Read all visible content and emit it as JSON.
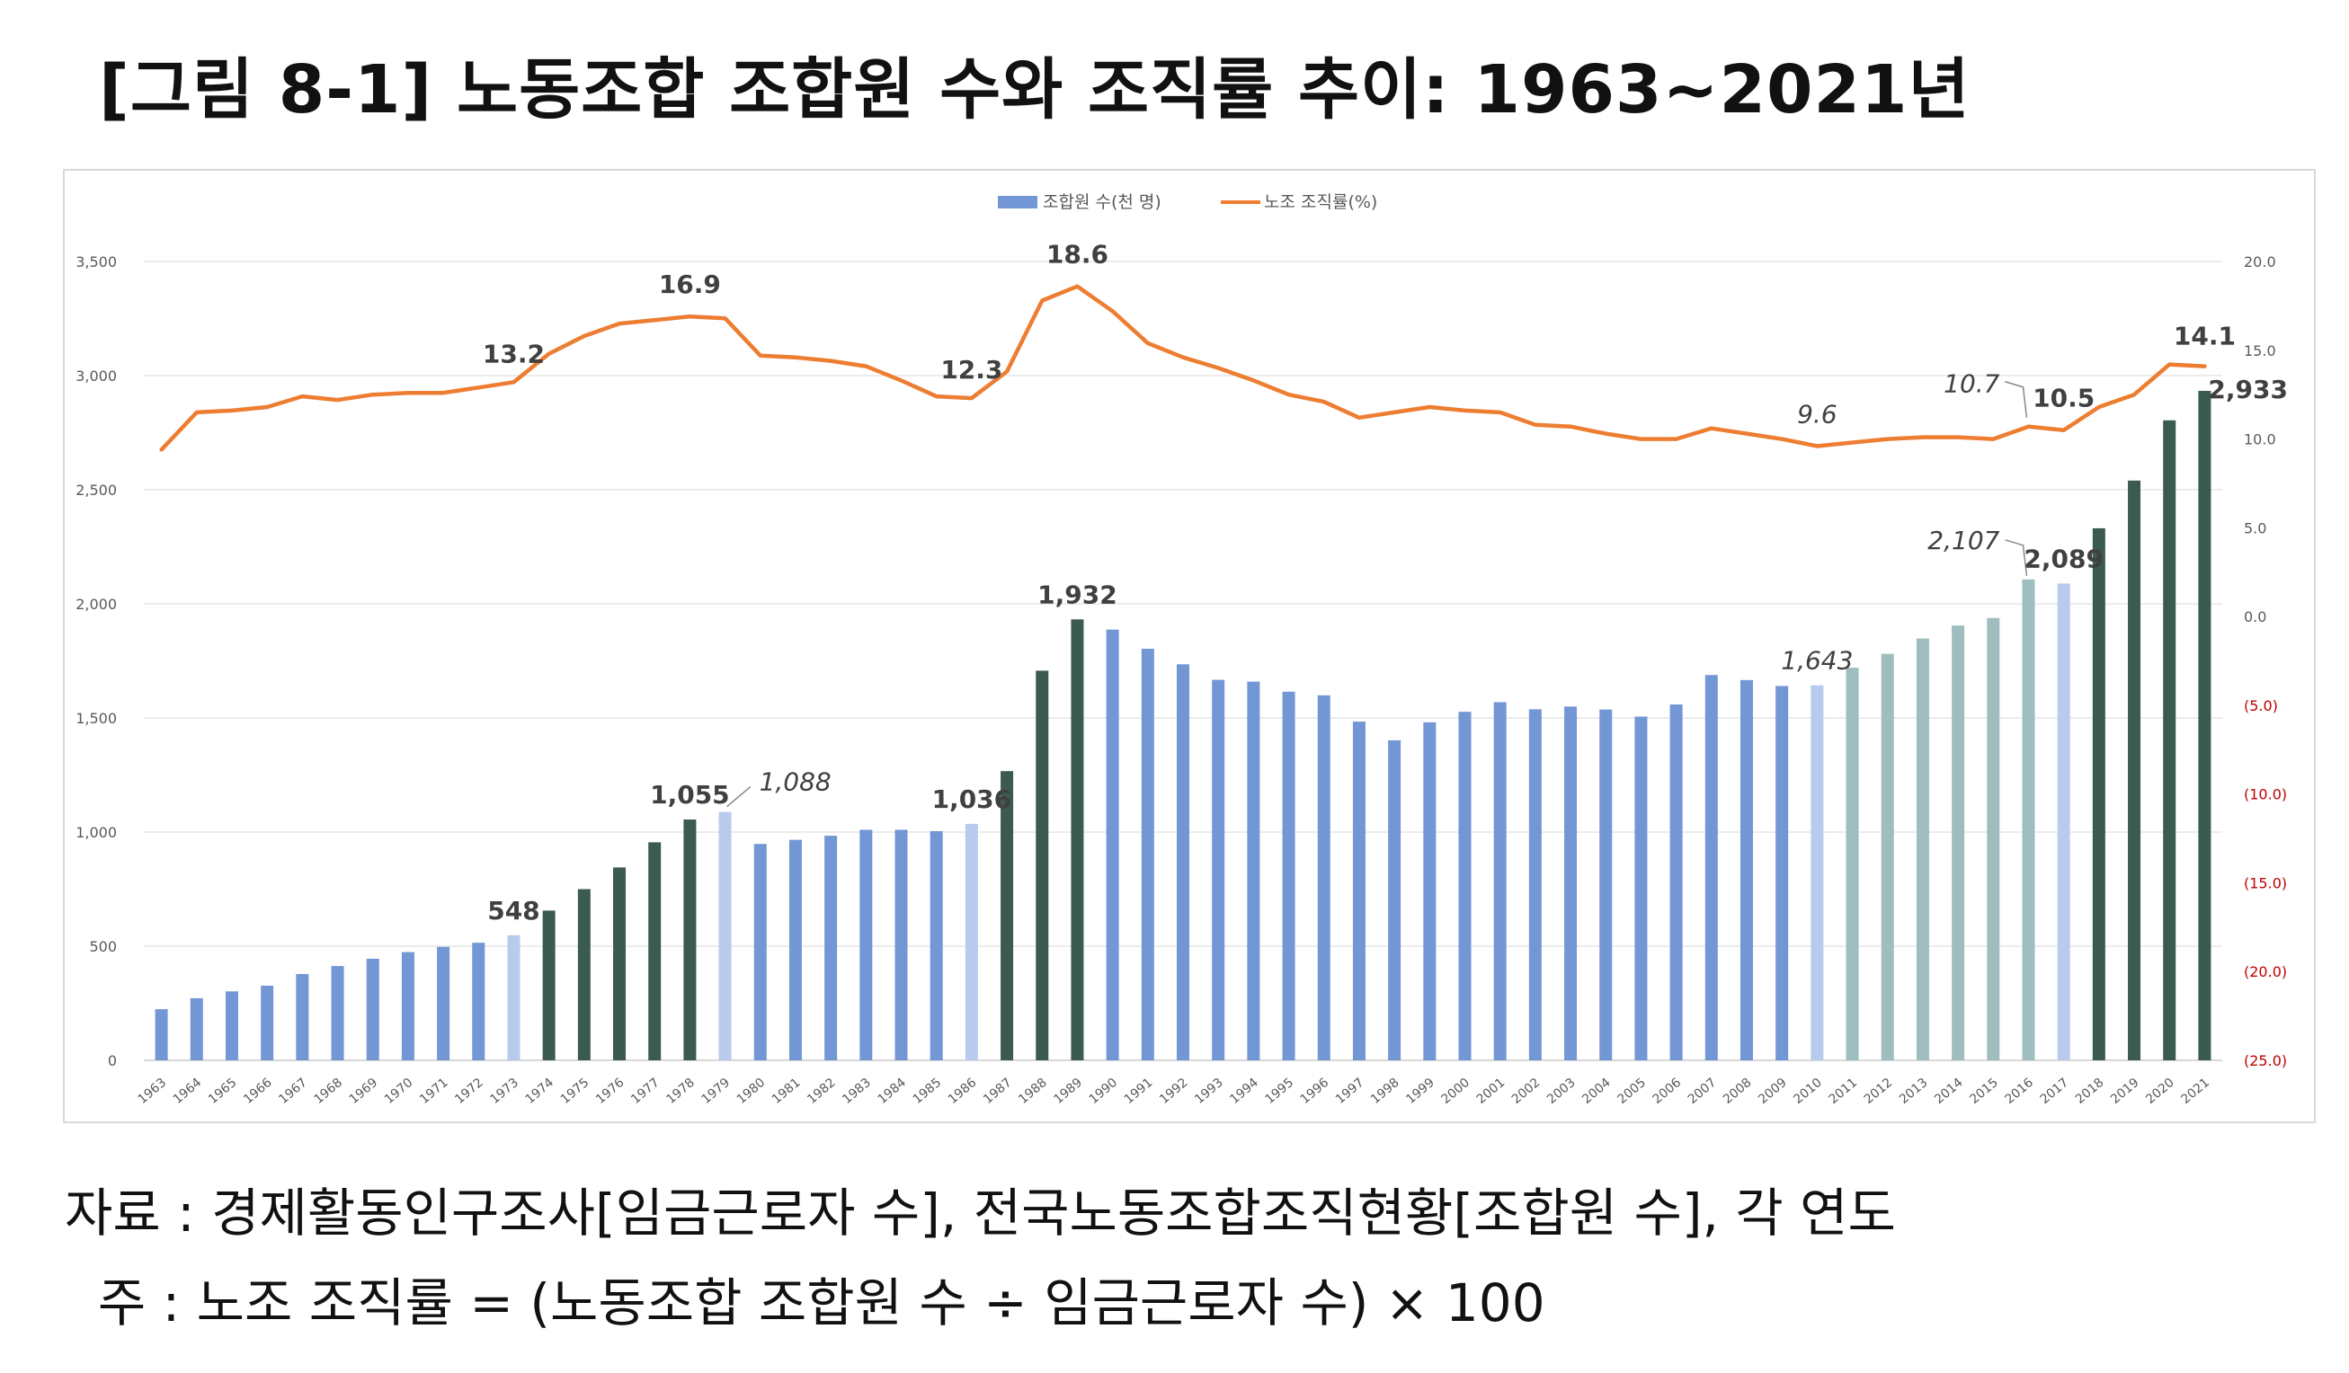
{
  "title": "[그림 8-1] 노동조합 조합원 수와 조직률 추이: 1963~2021년",
  "colors": {
    "bar_blue": "#7396d4",
    "bar_light": "#b8cbec",
    "bar_dark": "#3b5a52",
    "bar_teal": "#9fbdbf",
    "line": "#ed7d31",
    "grid": "#e6e6e6",
    "axis_text": "#595959",
    "neg_text": "#c00000",
    "label_text": "#404040"
  },
  "chart_data": {
    "type": "bar+line",
    "legend": {
      "position": "top-center",
      "items": [
        "조합원 수(천 명)",
        "노조 조직률(%)"
      ]
    },
    "categories": [
      "1963",
      "1964",
      "1965",
      "1966",
      "1967",
      "1968",
      "1969",
      "1970",
      "1971",
      "1972",
      "1973",
      "1974",
      "1975",
      "1976",
      "1977",
      "1978",
      "1979",
      "1980",
      "1981",
      "1982",
      "1983",
      "1984",
      "1985",
      "1986",
      "1987",
      "1988",
      "1989",
      "1990",
      "1991",
      "1992",
      "1993",
      "1994",
      "1995",
      "1996",
      "1997",
      "1998",
      "1999",
      "2000",
      "2001",
      "2002",
      "2003",
      "2004",
      "2005",
      "2006",
      "2007",
      "2008",
      "2009",
      "2010",
      "2011",
      "2012",
      "2013",
      "2014",
      "2015",
      "2016",
      "2017",
      "2018",
      "2019",
      "2020",
      "2021"
    ],
    "series": [
      {
        "name": "조합원 수(천 명)",
        "axis": "left",
        "type": "bar",
        "values": [
          224,
          272,
          302,
          327,
          378,
          413,
          445,
          474,
          497,
          515,
          548,
          656,
          750,
          845,
          955,
          1055,
          1088,
          948,
          966,
          984,
          1010,
          1010,
          1004,
          1036,
          1267,
          1707,
          1932,
          1887,
          1803,
          1735,
          1667,
          1659,
          1615,
          1599,
          1484,
          1402,
          1481,
          1527,
          1569,
          1538,
          1550,
          1537,
          1506,
          1559,
          1688,
          1666,
          1640,
          1643,
          1720,
          1781,
          1848,
          1905,
          1938,
          2107,
          2089,
          2331,
          2540,
          2804,
          2933
        ],
        "styles": [
          "blue",
          "blue",
          "blue",
          "blue",
          "blue",
          "blue",
          "blue",
          "blue",
          "blue",
          "blue",
          "light",
          "dark",
          "dark",
          "dark",
          "dark",
          "dark",
          "light",
          "blue",
          "blue",
          "blue",
          "blue",
          "blue",
          "blue",
          "light",
          "dark",
          "dark",
          "dark",
          "blue",
          "blue",
          "blue",
          "blue",
          "blue",
          "blue",
          "blue",
          "blue",
          "blue",
          "blue",
          "blue",
          "blue",
          "blue",
          "blue",
          "blue",
          "blue",
          "blue",
          "blue",
          "blue",
          "blue",
          "light",
          "teal",
          "teal",
          "teal",
          "teal",
          "teal",
          "teal",
          "light",
          "dark",
          "dark",
          "dark",
          "dark"
        ]
      },
      {
        "name": "노조 조직률(%)",
        "axis": "right",
        "type": "line",
        "values": [
          9.4,
          11.5,
          11.6,
          11.8,
          12.4,
          12.2,
          12.5,
          12.6,
          12.6,
          12.9,
          13.2,
          14.8,
          15.8,
          16.5,
          16.7,
          16.9,
          16.8,
          14.7,
          14.6,
          14.4,
          14.1,
          13.3,
          12.4,
          12.3,
          13.8,
          17.8,
          18.6,
          17.2,
          15.4,
          14.6,
          14.0,
          13.3,
          12.5,
          12.1,
          11.2,
          11.5,
          11.8,
          11.6,
          11.5,
          10.8,
          10.7,
          10.3,
          10.0,
          10.0,
          10.6,
          10.3,
          10.0,
          9.6,
          9.8,
          10.0,
          10.1,
          10.1,
          10.0,
          10.7,
          10.5,
          11.8,
          12.5,
          14.2,
          14.1
        ]
      }
    ],
    "y_left": {
      "min": 0,
      "max": 3500,
      "ticks": [
        "0",
        "500",
        "1,000",
        "1,500",
        "2,000",
        "2,500",
        "3,000",
        "3,500"
      ]
    },
    "y_right": {
      "min": -25,
      "max": 20,
      "ticks": [
        "(25.0)",
        "(20.0)",
        "(15.0)",
        "(10.0)",
        "(5.0)",
        "0.0",
        "5.0",
        "10.0",
        "15.0",
        "20.0"
      ]
    },
    "bar_labels": [
      {
        "index": 10,
        "text": "548",
        "style": "bold"
      },
      {
        "index": 15,
        "text": "1,055",
        "style": "bold"
      },
      {
        "index": 16,
        "text": "1,088",
        "style": "italic"
      },
      {
        "index": 23,
        "text": "1,036",
        "style": "bold"
      },
      {
        "index": 26,
        "text": "1,932",
        "style": "bold"
      },
      {
        "index": 47,
        "text": "1,643",
        "style": "italic"
      },
      {
        "index": 53,
        "text": "2,107",
        "style": "italic"
      },
      {
        "index": 54,
        "text": "2,089",
        "style": "bold"
      },
      {
        "index": 58,
        "text": "2,933",
        "style": "bold"
      }
    ],
    "line_labels": [
      {
        "index": 10,
        "text": "13.2",
        "style": "bold"
      },
      {
        "index": 15,
        "text": "16.9",
        "style": "bold"
      },
      {
        "index": 23,
        "text": "12.3",
        "style": "bold"
      },
      {
        "index": 26,
        "text": "18.6",
        "style": "bold"
      },
      {
        "index": 47,
        "text": "9.6",
        "style": "italic"
      },
      {
        "index": 53,
        "text": "10.7",
        "style": "italic"
      },
      {
        "index": 54,
        "text": "10.5",
        "style": "bold"
      },
      {
        "index": 58,
        "text": "14.1",
        "style": "bold"
      }
    ]
  },
  "notes": {
    "source": "자료 : 경제활동인구조사[임금근로자 수], 전국노동조합조직현황[조합원 수], 각 연도",
    "note": "  주 : 노조 조직률 = (노동조합 조합원 수 ÷ 임금근로자 수) × 100"
  }
}
